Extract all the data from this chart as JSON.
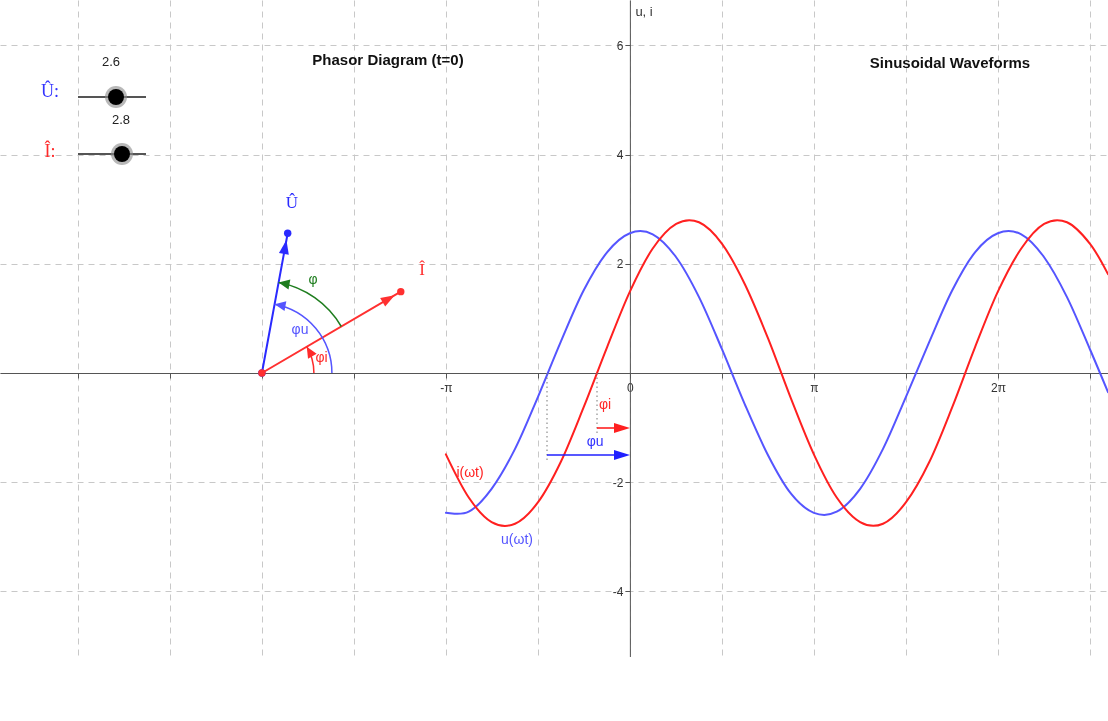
{
  "chart_data": {
    "type": "line",
    "title": "Sinusoidal Waveforms",
    "ylabel": "u, i",
    "xlim": [
      -10.75,
      8.16
    ],
    "ylim": [
      -5.2,
      6.83
    ],
    "xticks": [
      {
        "value": -9.4248,
        "label": null
      },
      {
        "value": -7.854,
        "label": null
      },
      {
        "value": -6.2832,
        "label": null
      },
      {
        "value": -4.7124,
        "label": null
      },
      {
        "value": -3.1416,
        "label": "-π"
      },
      {
        "value": -1.5708,
        "label": null
      },
      0,
      {
        "value": 1.5708,
        "label": null
      },
      {
        "value": 3.1416,
        "label": "π"
      },
      {
        "value": 4.7124,
        "label": null
      },
      {
        "value": 6.2832,
        "label": "2π"
      },
      {
        "value": 7.854,
        "label": null
      }
    ],
    "yticks": [
      -4,
      -2,
      {
        "value": 0,
        "label": null
      },
      2,
      4,
      6
    ],
    "grid": true,
    "line_style": "solid",
    "marker": "none",
    "series": [
      {
        "name": "u(ωt)",
        "color": "#5555ff",
        "x": [
          -3.14,
          -2.75,
          -2.36,
          -1.96,
          -1.57,
          -1.18,
          -0.79,
          -0.39,
          0,
          0.39,
          0.79,
          1.18,
          1.57,
          1.96,
          2.36,
          2.75,
          3.14,
          3.53,
          3.93,
          4.32,
          4.71,
          5.11,
          5.5,
          5.89,
          6.28,
          6.68,
          7.07,
          7.46,
          7.85,
          8.16
        ],
        "values": [
          -2.56,
          -2.54,
          -2.12,
          -1.39,
          -0.44,
          0.57,
          1.51,
          2.21,
          2.56,
          2.54,
          2.12,
          1.39,
          0.44,
          -0.57,
          -1.51,
          -2.21,
          -2.56,
          -2.54,
          -2.12,
          -1.39,
          -0.44,
          0.57,
          1.51,
          2.21,
          2.56,
          2.54,
          2.12,
          1.39,
          0.44,
          -0.35
        ]
      },
      {
        "name": "i(ωt)",
        "color": "#ff2020",
        "x": [
          -3.14,
          -2.75,
          -2.36,
          -1.96,
          -1.57,
          -1.18,
          -0.79,
          -0.39,
          0,
          0.39,
          0.79,
          1.18,
          1.57,
          1.96,
          2.36,
          2.75,
          3.14,
          3.53,
          3.93,
          4.32,
          4.71,
          5.11,
          5.5,
          5.89,
          6.28,
          6.68,
          7.07,
          7.46,
          7.85,
          8.16
        ],
        "values": [
          -1.49,
          -2.28,
          -2.73,
          -2.76,
          -2.37,
          -1.63,
          -0.63,
          0.47,
          1.49,
          2.28,
          2.73,
          2.76,
          2.37,
          1.63,
          0.63,
          -0.47,
          -1.49,
          -2.28,
          -2.73,
          -2.76,
          -2.37,
          -1.63,
          -0.63,
          0.47,
          1.49,
          2.28,
          2.73,
          2.76,
          2.37,
          1.81
        ]
      },
      {
        "name": "Û",
        "color": "#2a2aff",
        "marker": "circle",
        "x": [
          -6.28,
          -5.84
        ],
        "values": [
          0,
          2.56
        ]
      },
      {
        "name": "Î",
        "color": "#ff3030",
        "marker": "circle",
        "x": [
          -6.28,
          -3.91
        ],
        "values": [
          0,
          1.49
        ]
      }
    ],
    "annotations": [
      "Phasor Diagram  (t=0)",
      "Û:",
      "2.6",
      "Î:",
      "2.8",
      "φ",
      "φu",
      {
        "text": "φi",
        "x": -5.5,
        "y": 0.49
      },
      "φi",
      {
        "text": "φu",
        "x": -0.56,
        "y": 0
      }
    ]
  }
}
